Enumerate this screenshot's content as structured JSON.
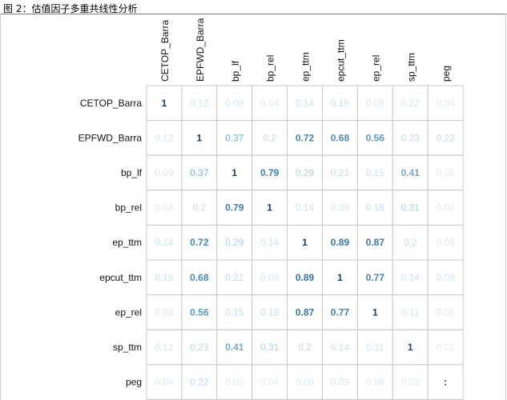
{
  "caption": "图 2：估值因子多重共线性分析",
  "chart_data": {
    "type": "heatmap",
    "title": "",
    "xlabel": "",
    "ylabel": "",
    "col_labels": [
      "CETOP_Barra",
      "EPFWD_Barra",
      "bp_lf",
      "bp_rel",
      "ep_ttm",
      "epcut_ttm",
      "ep_rel",
      "sp_ttm",
      "peg"
    ],
    "row_labels": [
      "CETOP_Barra",
      "EPFWD_Barra",
      "bp_lf",
      "bp_rel",
      "ep_ttm",
      "epcut_ttm",
      "ep_rel",
      "sp_ttm",
      "peg"
    ],
    "cells": [
      [
        "1",
        "0.12",
        "0.09",
        "0.04",
        "0.14",
        "0.15",
        "0.08",
        "0.12",
        "0.04"
      ],
      [
        "0.12",
        "1",
        "0.37",
        "0.2",
        "0.72",
        "0.68",
        "0.56",
        "0.23",
        "0.22"
      ],
      [
        "0.09",
        "0.37",
        "1",
        "0.79",
        "0.29",
        "0.21",
        "0.15",
        "0.41",
        "0.05"
      ],
      [
        "0.04",
        "0.2",
        "0.79",
        "1",
        "0.14",
        "0.09",
        "0.18",
        "0.31",
        "0.04"
      ],
      [
        "0.14",
        "0.72",
        "0.29",
        "0.14",
        "1",
        "0.89",
        "0.87",
        "0.2",
        "0.06"
      ],
      [
        "0.15",
        "0.68",
        "0.21",
        "0.09",
        "0.89",
        "1",
        "0.77",
        "0.14",
        "0.09"
      ],
      [
        "0.08",
        "0.56",
        "0.15",
        "0.18",
        "0.87",
        "0.77",
        "1",
        "0.11",
        "0.06"
      ],
      [
        "0.12",
        "0.23",
        "0.41",
        "0.31",
        "0.2",
        "0.14",
        "0.11",
        "1",
        "0.02"
      ],
      [
        "0.04",
        "0.22",
        "0.05",
        "0.04",
        "0.06",
        "0.09",
        "0.06",
        "0.02",
        ":"
      ]
    ],
    "colors": {
      "low": "#e2ebf3",
      "mid": "#7ab3d6",
      "high": "#2c6aa6",
      "top": "#173f6b",
      "grid": "#c8c8c8"
    },
    "grid": true,
    "legend": "none"
  }
}
